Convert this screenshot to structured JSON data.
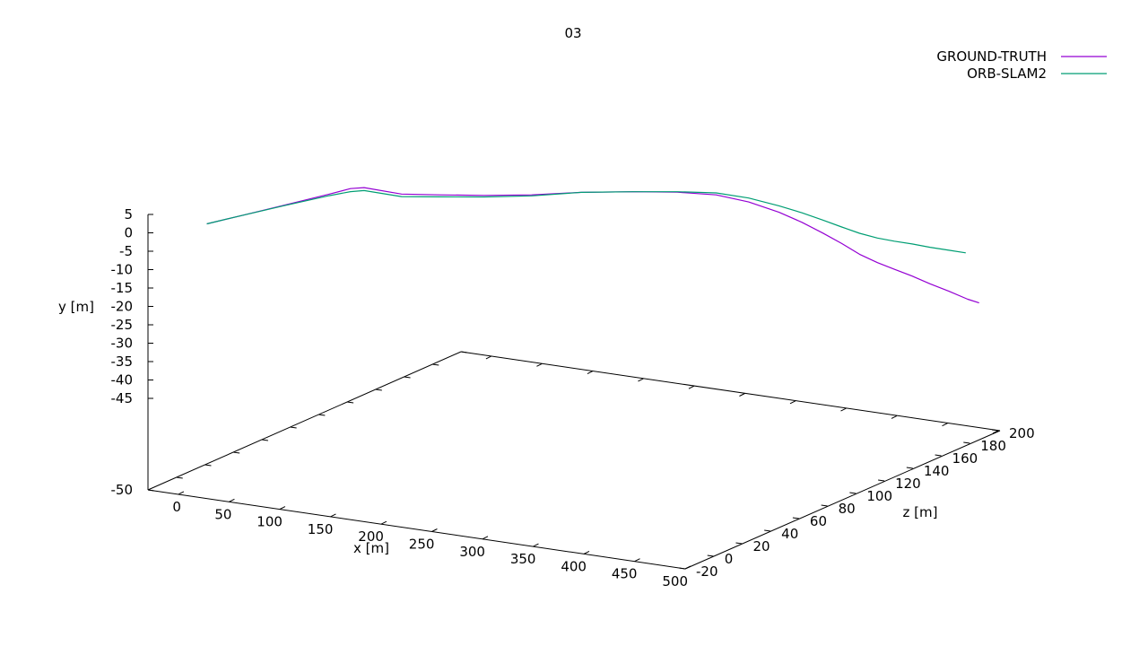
{
  "chart_data": {
    "type": "line",
    "projection": "3d",
    "title": "03",
    "xlabel": "x [m]",
    "ylabel": "y [m]",
    "zlabel": "z [m]",
    "x_ticks": [
      "0",
      "50",
      "100",
      "150",
      "200",
      "250",
      "300",
      "350",
      "400",
      "450",
      "500"
    ],
    "y_ticks": [
      "5",
      "0",
      "-5",
      "-10",
      "-15",
      "-20",
      "-25",
      "-30",
      "-35",
      "-40",
      "-45",
      "-50"
    ],
    "z_ticks": [
      "-20",
      "0",
      "20",
      "40",
      "60",
      "80",
      "100",
      "120",
      "140",
      "160",
      "180",
      "200"
    ],
    "xlim": [
      -30,
      500
    ],
    "ylim": [
      -50,
      5
    ],
    "zlim": [
      -20,
      200
    ],
    "legend_position": "top-right",
    "series": [
      {
        "name": "GROUND-TRUTH",
        "color": "#9400d3",
        "points": [
          [
            0,
            1.5,
            0
          ],
          [
            20,
            2.5,
            10
          ],
          [
            45,
            3.8,
            22
          ],
          [
            70,
            5.0,
            36
          ],
          [
            80,
            5.4,
            44
          ],
          [
            85,
            5.0,
            50
          ],
          [
            105,
            2.8,
            62
          ],
          [
            125,
            1.6,
            75
          ],
          [
            150,
            0.6,
            88
          ],
          [
            180,
            0.1,
            100
          ],
          [
            215,
            0.4,
            110
          ],
          [
            255,
            0.7,
            118
          ],
          [
            290,
            0.9,
            124
          ],
          [
            320,
            0.5,
            130
          ],
          [
            345,
            -0.8,
            135
          ],
          [
            368,
            -2.8,
            140
          ],
          [
            385,
            -4.8,
            144
          ],
          [
            400,
            -7.0,
            148
          ],
          [
            413,
            -9.2,
            152
          ],
          [
            425,
            -11.5,
            156
          ],
          [
            437,
            -13.3,
            160
          ],
          [
            448,
            -14.8,
            164
          ],
          [
            460,
            -16.3,
            168
          ],
          [
            472,
            -18.0,
            172
          ],
          [
            485,
            -19.6,
            176
          ],
          [
            498,
            -21.3,
            180
          ],
          [
            505,
            -22.2,
            183
          ]
        ]
      },
      {
        "name": "ORB-SLAM2",
        "color": "#009e73",
        "points": [
          [
            0,
            1.5,
            0
          ],
          [
            20,
            2.5,
            10
          ],
          [
            45,
            3.7,
            22
          ],
          [
            70,
            4.7,
            36
          ],
          [
            80,
            4.8,
            44
          ],
          [
            85,
            4.4,
            50
          ],
          [
            105,
            2.3,
            62
          ],
          [
            125,
            1.2,
            75
          ],
          [
            150,
            0.3,
            88
          ],
          [
            180,
            -0.1,
            100
          ],
          [
            215,
            0.4,
            110
          ],
          [
            255,
            0.7,
            118
          ],
          [
            290,
            1.0,
            124
          ],
          [
            320,
            0.9,
            130
          ],
          [
            345,
            0.0,
            135
          ],
          [
            368,
            -1.5,
            140
          ],
          [
            385,
            -2.9,
            144
          ],
          [
            400,
            -4.4,
            148
          ],
          [
            413,
            -5.9,
            152
          ],
          [
            425,
            -7.3,
            156
          ],
          [
            437,
            -8.4,
            160
          ],
          [
            448,
            -9.2,
            164
          ],
          [
            460,
            -9.9,
            168
          ],
          [
            472,
            -10.7,
            172
          ],
          [
            485,
            -11.4,
            176
          ],
          [
            496,
            -12.1,
            180
          ]
        ]
      }
    ]
  }
}
